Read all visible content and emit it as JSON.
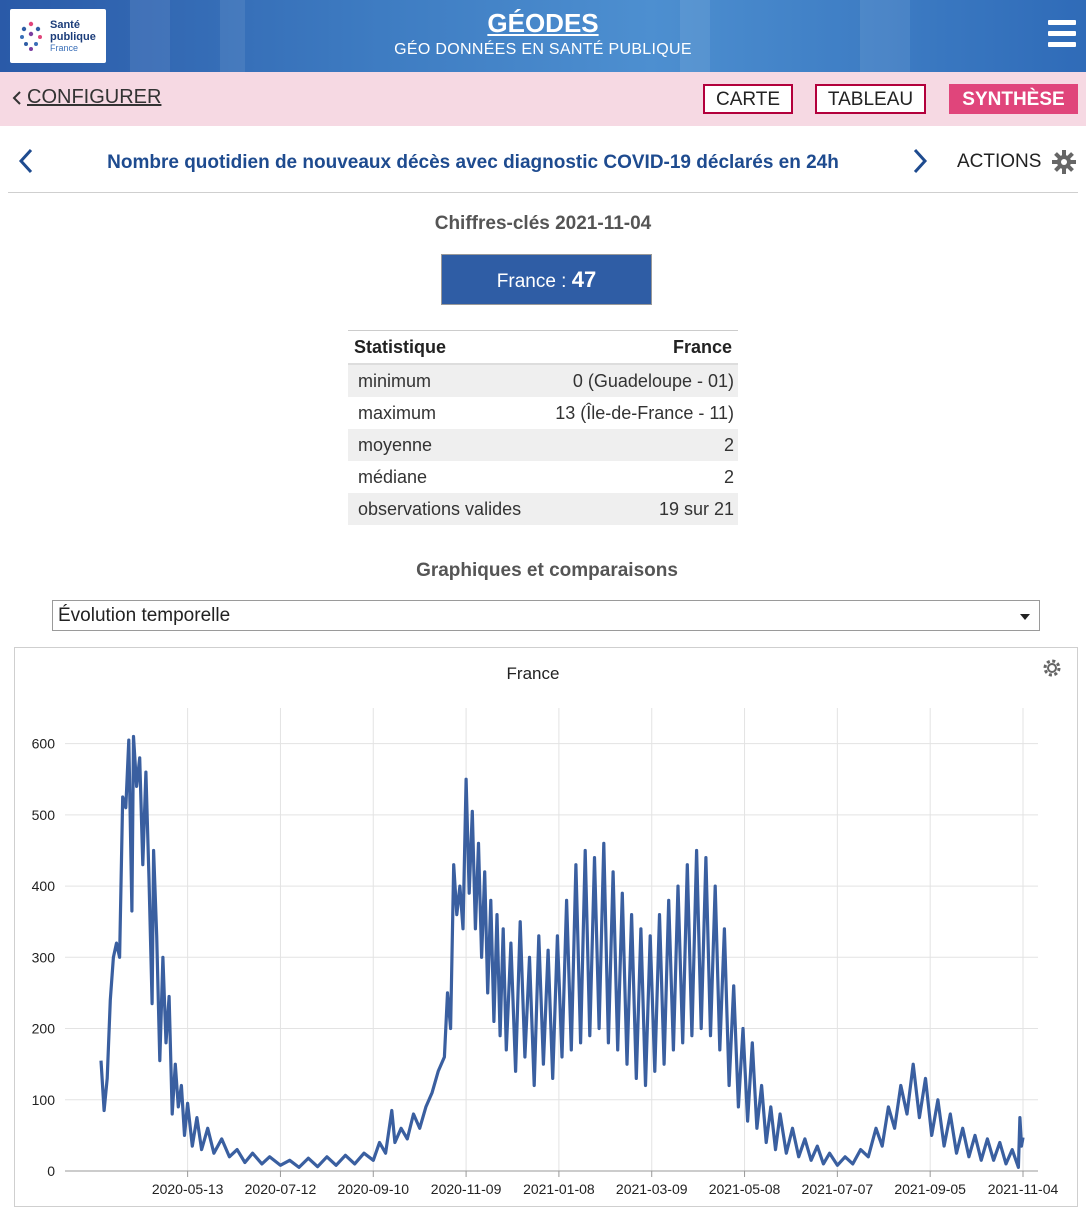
{
  "header": {
    "logo_line1": "Santé",
    "logo_line2": "publique",
    "logo_line3": "France",
    "app_title": "GÉODES",
    "app_subtitle": "GÉO DONNÉES EN SANTÉ PUBLIQUE",
    "menu_icon": "hamburger-icon"
  },
  "nav": {
    "configurer_label": "CONFIGURER",
    "tabs": [
      {
        "label": "CARTE",
        "active": false
      },
      {
        "label": "TABLEAU",
        "active": false
      },
      {
        "label": "SYNTHÈSE",
        "active": true
      }
    ],
    "active_color": "#e0457b"
  },
  "indicator": {
    "title": "Nombre quotidien de nouveaux décès avec diagnostic COVID-19 déclarés en 24h",
    "actions_label": "ACTIONS"
  },
  "key_figures": {
    "title": "Chiffres-clés 2021-11-04",
    "france_label": "France : ",
    "france_value": "47"
  },
  "stats_table": {
    "headers": [
      "Statistique",
      "France"
    ],
    "rows": [
      [
        "minimum",
        "0 (Guadeloupe - 01)"
      ],
      [
        "maximum",
        "13 (Île-de-France - 11)"
      ],
      [
        "moyenne",
        "2"
      ],
      [
        "médiane",
        "2"
      ],
      [
        "observations valides",
        "19 sur 21"
      ]
    ]
  },
  "charts_section": {
    "title": "Graphiques et comparaisons",
    "selected_option": "Évolution temporelle"
  },
  "chart_data": {
    "type": "line",
    "title": "France",
    "xlabel": "",
    "ylabel": "",
    "ylim": [
      0,
      650
    ],
    "yticks": [
      0,
      100,
      200,
      300,
      400,
      500,
      600
    ],
    "x_tick_labels": [
      "2020-05-13",
      "2020-07-12",
      "2020-09-10",
      "2020-11-09",
      "2021-01-08",
      "2021-03-09",
      "2021-05-08",
      "2021-07-07",
      "2021-09-05",
      "2021-11-04"
    ],
    "x_range": [
      "2020-03-18",
      "2021-11-04"
    ],
    "grid": true,
    "line_color": "#3a5fa0",
    "points": [
      [
        "2020-03-18",
        155
      ],
      [
        "2020-03-20",
        85
      ],
      [
        "2020-03-22",
        130
      ],
      [
        "2020-03-24",
        240
      ],
      [
        "2020-03-26",
        300
      ],
      [
        "2020-03-28",
        320
      ],
      [
        "2020-03-30",
        300
      ],
      [
        "2020-04-01",
        525
      ],
      [
        "2020-04-03",
        510
      ],
      [
        "2020-04-05",
        605
      ],
      [
        "2020-04-07",
        365
      ],
      [
        "2020-04-08",
        610
      ],
      [
        "2020-04-10",
        540
      ],
      [
        "2020-04-12",
        580
      ],
      [
        "2020-04-14",
        430
      ],
      [
        "2020-04-16",
        560
      ],
      [
        "2020-04-18",
        410
      ],
      [
        "2020-04-20",
        235
      ],
      [
        "2020-04-21",
        450
      ],
      [
        "2020-04-23",
        330
      ],
      [
        "2020-04-25",
        155
      ],
      [
        "2020-04-27",
        300
      ],
      [
        "2020-04-29",
        180
      ],
      [
        "2020-05-01",
        245
      ],
      [
        "2020-05-03",
        80
      ],
      [
        "2020-05-05",
        150
      ],
      [
        "2020-05-07",
        90
      ],
      [
        "2020-05-09",
        120
      ],
      [
        "2020-05-11",
        50
      ],
      [
        "2020-05-13",
        95
      ],
      [
        "2020-05-16",
        35
      ],
      [
        "2020-05-19",
        75
      ],
      [
        "2020-05-22",
        30
      ],
      [
        "2020-05-26",
        60
      ],
      [
        "2020-05-30",
        25
      ],
      [
        "2020-06-04",
        45
      ],
      [
        "2020-06-09",
        20
      ],
      [
        "2020-06-14",
        30
      ],
      [
        "2020-06-19",
        12
      ],
      [
        "2020-06-24",
        25
      ],
      [
        "2020-06-30",
        10
      ],
      [
        "2020-07-05",
        20
      ],
      [
        "2020-07-12",
        8
      ],
      [
        "2020-07-18",
        15
      ],
      [
        "2020-07-24",
        5
      ],
      [
        "2020-07-30",
        18
      ],
      [
        "2020-08-05",
        6
      ],
      [
        "2020-08-11",
        20
      ],
      [
        "2020-08-17",
        8
      ],
      [
        "2020-08-23",
        22
      ],
      [
        "2020-08-29",
        10
      ],
      [
        "2020-09-04",
        25
      ],
      [
        "2020-09-10",
        15
      ],
      [
        "2020-09-14",
        40
      ],
      [
        "2020-09-18",
        25
      ],
      [
        "2020-09-22",
        85
      ],
      [
        "2020-09-24",
        40
      ],
      [
        "2020-09-28",
        60
      ],
      [
        "2020-10-02",
        45
      ],
      [
        "2020-10-06",
        80
      ],
      [
        "2020-10-10",
        60
      ],
      [
        "2020-10-14",
        90
      ],
      [
        "2020-10-18",
        110
      ],
      [
        "2020-10-22",
        140
      ],
      [
        "2020-10-26",
        160
      ],
      [
        "2020-10-28",
        250
      ],
      [
        "2020-10-30",
        200
      ],
      [
        "2020-11-01",
        430
      ],
      [
        "2020-11-03",
        360
      ],
      [
        "2020-11-05",
        400
      ],
      [
        "2020-11-07",
        340
      ],
      [
        "2020-11-09",
        550
      ],
      [
        "2020-11-11",
        390
      ],
      [
        "2020-11-13",
        505
      ],
      [
        "2020-11-15",
        340
      ],
      [
        "2020-11-17",
        460
      ],
      [
        "2020-11-19",
        300
      ],
      [
        "2020-11-21",
        420
      ],
      [
        "2020-11-23",
        250
      ],
      [
        "2020-11-25",
        380
      ],
      [
        "2020-11-27",
        210
      ],
      [
        "2020-11-29",
        360
      ],
      [
        "2020-12-01",
        190
      ],
      [
        "2020-12-03",
        340
      ],
      [
        "2020-12-05",
        170
      ],
      [
        "2020-12-08",
        320
      ],
      [
        "2020-12-11",
        140
      ],
      [
        "2020-12-14",
        350
      ],
      [
        "2020-12-17",
        160
      ],
      [
        "2020-12-20",
        300
      ],
      [
        "2020-12-23",
        120
      ],
      [
        "2020-12-26",
        330
      ],
      [
        "2020-12-29",
        150
      ],
      [
        "2021-01-01",
        310
      ],
      [
        "2021-01-04",
        130
      ],
      [
        "2021-01-07",
        330
      ],
      [
        "2021-01-10",
        160
      ],
      [
        "2021-01-13",
        380
      ],
      [
        "2021-01-16",
        170
      ],
      [
        "2021-01-19",
        430
      ],
      [
        "2021-01-22",
        180
      ],
      [
        "2021-01-25",
        450
      ],
      [
        "2021-01-28",
        190
      ],
      [
        "2021-01-31",
        440
      ],
      [
        "2021-02-03",
        200
      ],
      [
        "2021-02-06",
        460
      ],
      [
        "2021-02-09",
        180
      ],
      [
        "2021-02-12",
        420
      ],
      [
        "2021-02-15",
        170
      ],
      [
        "2021-02-18",
        390
      ],
      [
        "2021-02-21",
        150
      ],
      [
        "2021-02-24",
        360
      ],
      [
        "2021-02-27",
        130
      ],
      [
        "2021-03-02",
        340
      ],
      [
        "2021-03-05",
        120
      ],
      [
        "2021-03-08",
        330
      ],
      [
        "2021-03-11",
        140
      ],
      [
        "2021-03-14",
        360
      ],
      [
        "2021-03-17",
        150
      ],
      [
        "2021-03-20",
        380
      ],
      [
        "2021-03-23",
        170
      ],
      [
        "2021-03-26",
        400
      ],
      [
        "2021-03-29",
        180
      ],
      [
        "2021-04-01",
        430
      ],
      [
        "2021-04-04",
        190
      ],
      [
        "2021-04-07",
        450
      ],
      [
        "2021-04-10",
        200
      ],
      [
        "2021-04-13",
        440
      ],
      [
        "2021-04-16",
        190
      ],
      [
        "2021-04-19",
        400
      ],
      [
        "2021-04-22",
        170
      ],
      [
        "2021-04-25",
        340
      ],
      [
        "2021-04-28",
        120
      ],
      [
        "2021-05-01",
        260
      ],
      [
        "2021-05-04",
        90
      ],
      [
        "2021-05-07",
        200
      ],
      [
        "2021-05-10",
        70
      ],
      [
        "2021-05-13",
        180
      ],
      [
        "2021-05-16",
        60
      ],
      [
        "2021-05-19",
        120
      ],
      [
        "2021-05-22",
        40
      ],
      [
        "2021-05-25",
        90
      ],
      [
        "2021-05-28",
        30
      ],
      [
        "2021-05-31",
        80
      ],
      [
        "2021-06-04",
        25
      ],
      [
        "2021-06-08",
        60
      ],
      [
        "2021-06-12",
        20
      ],
      [
        "2021-06-16",
        45
      ],
      [
        "2021-06-20",
        15
      ],
      [
        "2021-06-24",
        35
      ],
      [
        "2021-06-28",
        10
      ],
      [
        "2021-07-02",
        25
      ],
      [
        "2021-07-07",
        8
      ],
      [
        "2021-07-12",
        20
      ],
      [
        "2021-07-17",
        10
      ],
      [
        "2021-07-22",
        30
      ],
      [
        "2021-07-27",
        20
      ],
      [
        "2021-08-01",
        60
      ],
      [
        "2021-08-05",
        35
      ],
      [
        "2021-08-09",
        90
      ],
      [
        "2021-08-13",
        60
      ],
      [
        "2021-08-17",
        120
      ],
      [
        "2021-08-21",
        80
      ],
      [
        "2021-08-25",
        150
      ],
      [
        "2021-08-29",
        75
      ],
      [
        "2021-09-02",
        130
      ],
      [
        "2021-09-06",
        50
      ],
      [
        "2021-09-10",
        100
      ],
      [
        "2021-09-14",
        35
      ],
      [
        "2021-09-18",
        80
      ],
      [
        "2021-09-22",
        25
      ],
      [
        "2021-09-26",
        60
      ],
      [
        "2021-09-30",
        20
      ],
      [
        "2021-10-04",
        50
      ],
      [
        "2021-10-08",
        15
      ],
      [
        "2021-10-12",
        45
      ],
      [
        "2021-10-16",
        15
      ],
      [
        "2021-10-20",
        40
      ],
      [
        "2021-10-24",
        10
      ],
      [
        "2021-10-28",
        30
      ],
      [
        "2021-11-01",
        5
      ],
      [
        "2021-11-02",
        75
      ],
      [
        "2021-11-03",
        35
      ],
      [
        "2021-11-04",
        47
      ]
    ]
  }
}
